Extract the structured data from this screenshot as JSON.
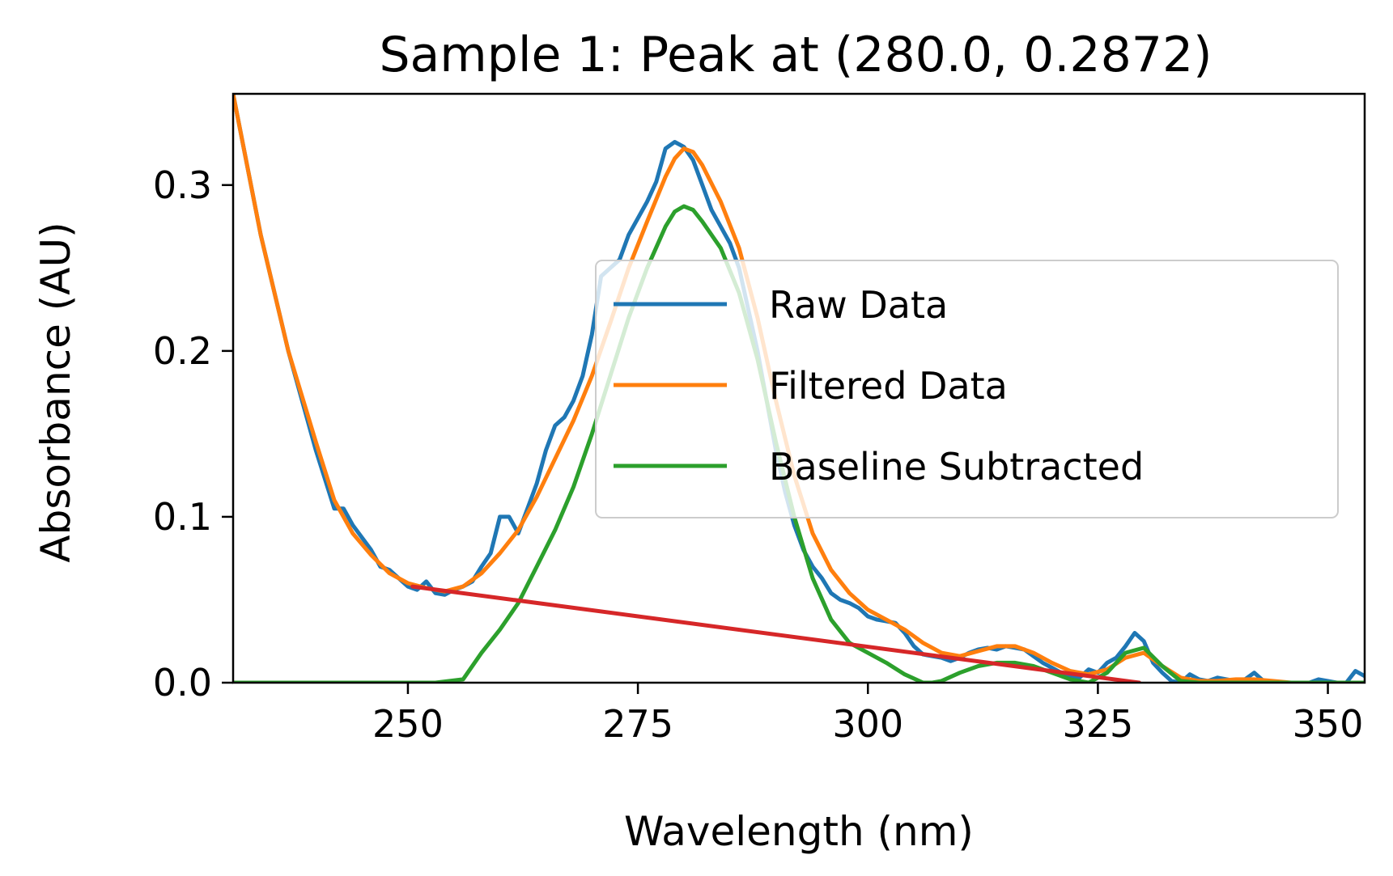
{
  "chart_data": {
    "type": "line",
    "title": "Sample 1: Peak at (280.0, 0.2872)",
    "xlabel": "Wavelength (nm)",
    "ylabel": "Absorbance (AU)",
    "xlim": [
      231,
      354
    ],
    "ylim": [
      0,
      0.355
    ],
    "xticks": [
      250,
      275,
      300,
      325,
      350
    ],
    "yticks": [
      0.0,
      0.1,
      0.2,
      0.3
    ],
    "xtick_labels": [
      "250",
      "275",
      "300",
      "325",
      "350"
    ],
    "ytick_labels": [
      "0.0",
      "0.1",
      "0.2",
      "0.3"
    ],
    "grid": false,
    "legend_position": "center-right",
    "series": [
      {
        "name": "Raw Data",
        "color": "#1f77b4",
        "x": [
          231,
          234,
          237,
          240,
          242,
          243,
          244,
          246,
          247,
          248,
          250,
          251,
          252,
          253,
          254,
          255,
          256,
          257,
          258,
          259,
          260,
          261,
          262,
          263,
          264,
          265,
          266,
          267,
          268,
          269,
          270,
          271,
          272,
          273,
          274,
          275,
          276,
          277,
          278,
          279,
          280,
          281,
          282,
          283,
          284,
          285,
          286,
          287,
          288,
          289,
          290,
          291,
          292,
          293,
          294,
          295,
          296,
          297,
          298,
          299,
          300,
          301,
          302,
          303,
          304,
          305,
          306,
          307,
          308,
          309,
          310,
          311,
          312,
          313,
          314,
          315,
          316,
          317,
          318,
          319,
          320,
          321,
          322,
          323,
          324,
          325,
          326,
          327,
          328,
          329,
          330,
          331,
          332,
          333,
          334,
          335,
          336,
          337,
          338,
          339,
          340,
          341,
          342,
          343,
          344,
          345,
          346,
          347,
          348,
          349,
          350,
          351,
          352,
          353,
          354
        ],
        "y": [
          0.355,
          0.27,
          0.2,
          0.14,
          0.105,
          0.105,
          0.095,
          0.08,
          0.07,
          0.068,
          0.058,
          0.056,
          0.061,
          0.054,
          0.053,
          0.056,
          0.058,
          0.061,
          0.07,
          0.078,
          0.1,
          0.1,
          0.09,
          0.105,
          0.12,
          0.14,
          0.155,
          0.16,
          0.17,
          0.185,
          0.21,
          0.245,
          0.25,
          0.255,
          0.27,
          0.28,
          0.29,
          0.302,
          0.322,
          0.326,
          0.323,
          0.315,
          0.3,
          0.285,
          0.275,
          0.265,
          0.25,
          0.225,
          0.2,
          0.17,
          0.14,
          0.115,
          0.095,
          0.08,
          0.07,
          0.063,
          0.054,
          0.05,
          0.048,
          0.045,
          0.04,
          0.038,
          0.037,
          0.036,
          0.03,
          0.022,
          0.017,
          0.016,
          0.015,
          0.013,
          0.015,
          0.018,
          0.02,
          0.021,
          0.02,
          0.022,
          0.021,
          0.02,
          0.016,
          0.012,
          0.009,
          0.006,
          0.004,
          0.003,
          0.008,
          0.006,
          0.012,
          0.015,
          0.022,
          0.03,
          0.025,
          0.012,
          0.006,
          0.001,
          0.0,
          0.005,
          0.002,
          0.001,
          0.003,
          0.002,
          0.001,
          0.002,
          0.006,
          0.001,
          0.0,
          0.0,
          0.0,
          0.0,
          0.0,
          0.002,
          0.001,
          0.0,
          0.0,
          0.007,
          0.004
        ]
      },
      {
        "name": "Filtered Data",
        "color": "#ff7f0e",
        "x": [
          231,
          234,
          237,
          240,
          242,
          244,
          246,
          248,
          250,
          252,
          254,
          256,
          258,
          260,
          262,
          264,
          266,
          268,
          270,
          272,
          274,
          276,
          278,
          279,
          280,
          281,
          282,
          284,
          286,
          288,
          290,
          292,
          294,
          296,
          298,
          300,
          302,
          304,
          306,
          308,
          310,
          312,
          314,
          316,
          318,
          320,
          322,
          324,
          326,
          328,
          330,
          332,
          334,
          336,
          338,
          340,
          342,
          344,
          346,
          348,
          350,
          352,
          354
        ],
        "y": [
          0.355,
          0.27,
          0.2,
          0.145,
          0.11,
          0.09,
          0.077,
          0.066,
          0.06,
          0.057,
          0.055,
          0.058,
          0.066,
          0.078,
          0.092,
          0.112,
          0.135,
          0.158,
          0.185,
          0.217,
          0.25,
          0.278,
          0.305,
          0.316,
          0.322,
          0.32,
          0.312,
          0.29,
          0.262,
          0.22,
          0.17,
          0.125,
          0.09,
          0.068,
          0.054,
          0.044,
          0.038,
          0.032,
          0.024,
          0.018,
          0.016,
          0.019,
          0.022,
          0.022,
          0.018,
          0.012,
          0.007,
          0.005,
          0.008,
          0.015,
          0.018,
          0.01,
          0.003,
          0.001,
          0.001,
          0.002,
          0.002,
          0.001,
          0.0,
          0.0,
          0.0,
          0.0,
          0.0
        ]
      },
      {
        "name": "Baseline Subtracted",
        "color": "#2ca02c",
        "x": [
          231,
          240,
          250,
          253,
          256,
          258,
          260,
          262,
          264,
          266,
          268,
          270,
          272,
          274,
          276,
          278,
          279,
          280,
          281,
          282,
          284,
          286,
          288,
          290,
          292,
          294,
          296,
          298,
          300,
          302,
          304,
          306,
          307,
          308,
          310,
          312,
          314,
          316,
          318,
          320,
          322,
          324,
          326,
          328,
          330,
          332,
          334,
          336,
          340,
          345,
          350,
          354
        ],
        "y": [
          0.0,
          0.0,
          0.0,
          0.0,
          0.002,
          0.018,
          0.032,
          0.048,
          0.07,
          0.092,
          0.118,
          0.15,
          0.185,
          0.22,
          0.25,
          0.275,
          0.284,
          0.2872,
          0.285,
          0.278,
          0.262,
          0.235,
          0.195,
          0.145,
          0.1,
          0.063,
          0.038,
          0.024,
          0.018,
          0.012,
          0.005,
          0.0,
          0.0,
          0.001,
          0.006,
          0.01,
          0.012,
          0.012,
          0.01,
          0.006,
          0.002,
          0.0,
          0.006,
          0.018,
          0.021,
          0.01,
          0.001,
          0.0,
          0.0,
          0.0,
          0.0,
          0.0
        ]
      },
      {
        "color": "#d62728",
        "x": [
          250.5,
          329.5
        ],
        "y": [
          0.058,
          0.0
        ]
      }
    ]
  }
}
